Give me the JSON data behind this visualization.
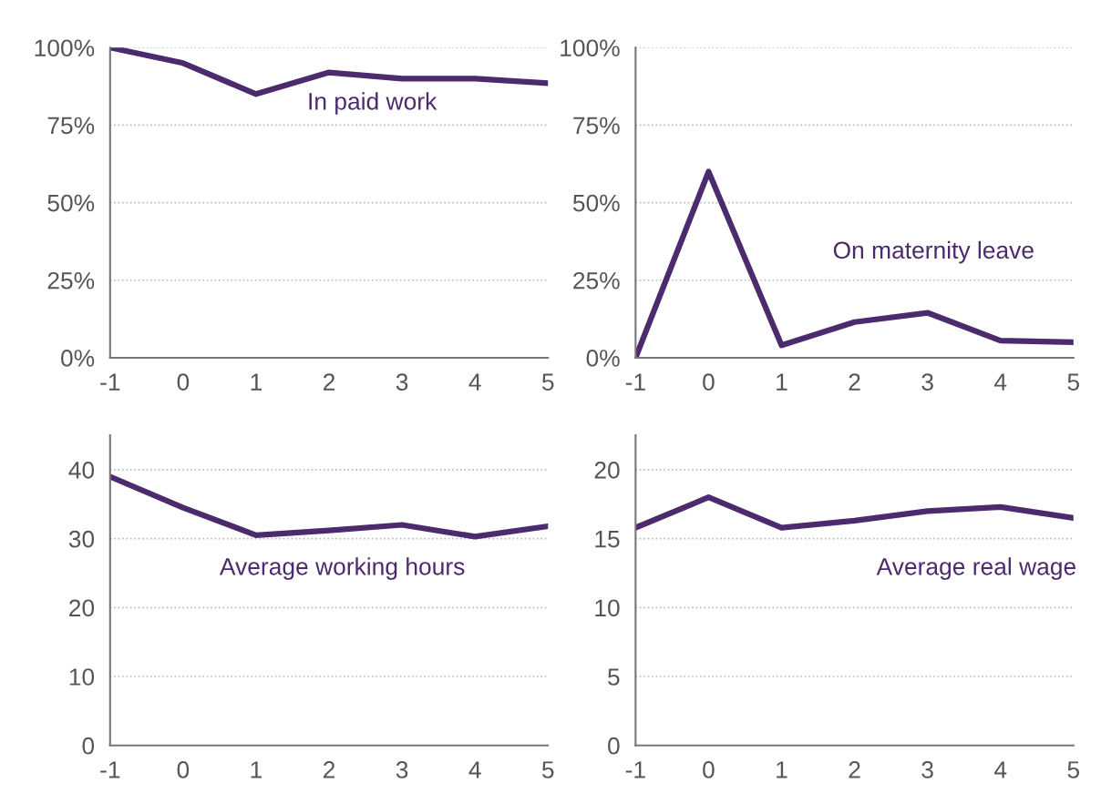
{
  "chart_data": [
    {
      "type": "line",
      "x": [
        -1,
        0,
        1,
        2,
        3,
        4,
        5
      ],
      "xlim": [
        -1,
        5
      ],
      "xticks": [
        -1,
        0,
        1,
        2,
        3,
        4,
        5
      ],
      "ylim": [
        0,
        100
      ],
      "yticks": [
        {
          "value": 0,
          "label": "0%"
        },
        {
          "value": 25,
          "label": "25%"
        },
        {
          "value": 50,
          "label": "50%"
        },
        {
          "value": 75,
          "label": "75%"
        },
        {
          "value": 100,
          "label": "100%"
        }
      ],
      "grid": "y",
      "legend": false,
      "series": [
        {
          "name": "In paid work",
          "color": "#4b2a6e",
          "values": [
            100,
            95,
            85,
            92,
            90,
            90,
            88.5
          ]
        }
      ]
    },
    {
      "type": "line",
      "x": [
        -1,
        0,
        1,
        2,
        3,
        4,
        5
      ],
      "xlim": [
        -1,
        5
      ],
      "xticks": [
        -1,
        0,
        1,
        2,
        3,
        4,
        5
      ],
      "ylim": [
        0,
        100
      ],
      "yticks": [
        {
          "value": 0,
          "label": "0%"
        },
        {
          "value": 25,
          "label": "25%"
        },
        {
          "value": 50,
          "label": "50%"
        },
        {
          "value": 75,
          "label": "75%"
        },
        {
          "value": 100,
          "label": "100%"
        }
      ],
      "grid": "y",
      "legend": false,
      "series": [
        {
          "name": "On maternity leave",
          "color": "#4b2a6e",
          "values": [
            0,
            60,
            4,
            11.5,
            14.5,
            5.5,
            5
          ]
        }
      ]
    },
    {
      "type": "line",
      "x": [
        -1,
        0,
        1,
        2,
        3,
        4,
        5
      ],
      "xlim": [
        -1,
        5
      ],
      "xticks": [
        -1,
        0,
        1,
        2,
        3,
        4,
        5
      ],
      "ylim": [
        0,
        45
      ],
      "yticks": [
        0,
        10,
        20,
        30,
        40
      ],
      "grid": "y",
      "legend": false,
      "series": [
        {
          "name": "Average working hours",
          "color": "#4b2a6e",
          "values": [
            39,
            34.5,
            30.5,
            31.2,
            32,
            30.3,
            31.8
          ]
        }
      ]
    },
    {
      "type": "line",
      "x": [
        -1,
        0,
        1,
        2,
        3,
        4,
        5
      ],
      "xlim": [
        -1,
        5
      ],
      "xticks": [
        -1,
        0,
        1,
        2,
        3,
        4,
        5
      ],
      "ylim": [
        0,
        22.5
      ],
      "yticks": [
        0,
        5,
        10,
        15,
        20
      ],
      "grid": "y",
      "legend": false,
      "series": [
        {
          "name": "Average real wage",
          "color": "#4b2a6e",
          "values": [
            15.8,
            18,
            15.8,
            16.3,
            17,
            17.3,
            16.5
          ]
        }
      ]
    }
  ]
}
